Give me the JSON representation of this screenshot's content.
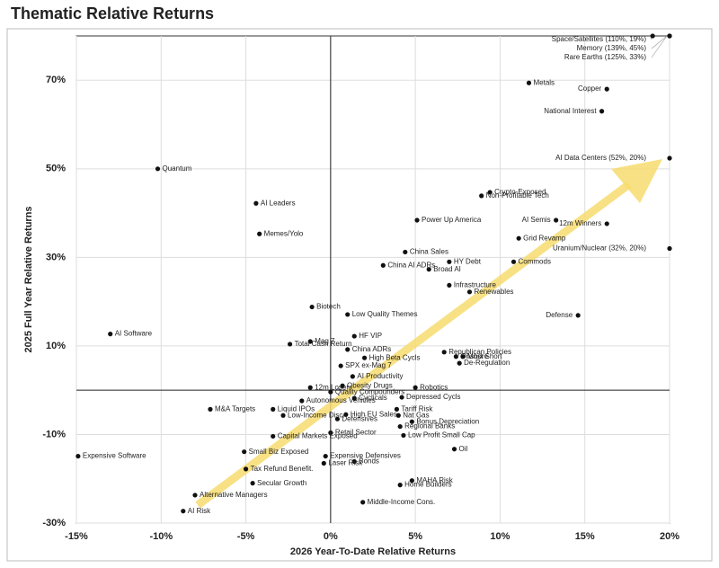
{
  "chart_data": {
    "type": "scatter",
    "title": "Thematic Relative Returns",
    "x_label": "2026 Year-To-Date Relative Returns",
    "y_label": "2025 Full Year Relative Returns",
    "xlim": [
      -15,
      20
    ],
    "ylim": [
      -30,
      80
    ],
    "xticks": [
      {
        "value": -15,
        "label": "-15%"
      },
      {
        "value": -10,
        "label": "-10%"
      },
      {
        "value": -5,
        "label": "-5%"
      },
      {
        "value": 0,
        "label": "0%"
      },
      {
        "value": 5,
        "label": "5%"
      },
      {
        "value": 10,
        "label": "10%"
      },
      {
        "value": 15,
        "label": "15%"
      },
      {
        "value": 20,
        "label": "20%"
      }
    ],
    "yticks": [
      {
        "value": -30,
        "label": "-30%"
      },
      {
        "value": -10,
        "label": "-10%"
      },
      {
        "value": 10,
        "label": "10%"
      },
      {
        "value": 30,
        "label": "30%"
      },
      {
        "value": 50,
        "label": "50%"
      },
      {
        "value": 70,
        "label": "70%"
      }
    ],
    "grid": true,
    "color": "#111111",
    "arrow_color": "#f7dc6f",
    "points": [
      {
        "label": "Space/Satellites (110%, 19%)",
        "x": 19,
        "y": 80
      },
      {
        "label": "Memory (139%, 45%)",
        "x": 20,
        "y": 80
      },
      {
        "label": "Rare Earths (125%, 33%)",
        "x": 20,
        "y": 80
      },
      {
        "label": "Metals",
        "x": 11.7,
        "y": 69.4
      },
      {
        "label": "Copper",
        "x": 16.3,
        "y": 68
      },
      {
        "label": "National Interest",
        "x": 16.0,
        "y": 63
      },
      {
        "label": "AI Data Centers (52%, 20%)",
        "x": 20,
        "y": 52.4
      },
      {
        "label": "Uranium/Nuclear (32%, 20%)",
        "x": 20,
        "y": 32
      },
      {
        "label": "Crypto-Exposed",
        "x": 9.4,
        "y": 44.7
      },
      {
        "label": "Non-Profitable Tech",
        "x": 8.9,
        "y": 43.9
      },
      {
        "label": "AI Semis",
        "x": 13.3,
        "y": 38.4
      },
      {
        "label": "12m Winners",
        "x": 16.3,
        "y": 37.6
      },
      {
        "label": "Power Up America",
        "x": 5.1,
        "y": 38.4
      },
      {
        "label": "Grid Revamp",
        "x": 11.1,
        "y": 34.3
      },
      {
        "label": "China Sales",
        "x": 4.4,
        "y": 31.2
      },
      {
        "label": "HY Debt",
        "x": 7.0,
        "y": 29
      },
      {
        "label": "Commods",
        "x": 10.8,
        "y": 29
      },
      {
        "label": "China AI ADRs",
        "x": 3.1,
        "y": 28.2
      },
      {
        "label": "Broad AI",
        "x": 5.8,
        "y": 27.3
      },
      {
        "label": "Infrastructure",
        "x": 7.0,
        "y": 23.7
      },
      {
        "label": "Renewables",
        "x": 8.2,
        "y": 22.2
      },
      {
        "label": "Defense",
        "x": 14.6,
        "y": 16.9
      },
      {
        "label": "Biotech",
        "x": -1.1,
        "y": 18.8
      },
      {
        "label": "Quantum",
        "x": -10.2,
        "y": 50
      },
      {
        "label": "AI Leaders",
        "x": -4.4,
        "y": 42.2
      },
      {
        "label": "Memes/Yolo",
        "x": -4.2,
        "y": 35.3
      },
      {
        "label": "AI Software",
        "x": -13.0,
        "y": 12.7
      },
      {
        "label": "Low Quality Themes",
        "x": 1.0,
        "y": 17.1
      },
      {
        "label": "HF VIP",
        "x": 1.4,
        "y": 12.2
      },
      {
        "label": "Mag 7",
        "x": -1.2,
        "y": 11
      },
      {
        "label": "Total Cash Return",
        "x": -2.4,
        "y": 10.4
      },
      {
        "label": "China ADRs",
        "x": 1.0,
        "y": 9.2
      },
      {
        "label": "High Beta Cycls",
        "x": 2.0,
        "y": 7.3
      },
      {
        "label": "SPX ex-Mag 7",
        "x": 0.6,
        "y": 5.5
      },
      {
        "label": "Republican Policies",
        "x": 6.7,
        "y": 8.6
      },
      {
        "label": "Onshore",
        "x": 7.4,
        "y": 7.6
      },
      {
        "label": "Most Short",
        "x": 7.8,
        "y": 7.6
      },
      {
        "label": "De-Regulation",
        "x": 7.6,
        "y": 6.1
      },
      {
        "label": "AI Productivity",
        "x": 1.3,
        "y": 3.1
      },
      {
        "label": "Obesity Drugs",
        "x": 0.7,
        "y": 1
      },
      {
        "label": "Robotics",
        "x": 5.0,
        "y": 0.6
      },
      {
        "label": "12m Losers",
        "x": -1.2,
        "y": 0.6
      },
      {
        "label": "Quality Compounders",
        "x": 0,
        "y": -0.4
      },
      {
        "label": "Autonomous Vehicles",
        "x": -1.7,
        "y": -2.4
      },
      {
        "label": "Liquid IPOs",
        "x": -3.4,
        "y": -4.3
      },
      {
        "label": "M&A Targets",
        "x": -7.1,
        "y": -4.3
      },
      {
        "label": "Low-Income Disc.",
        "x": -2.8,
        "y": -5.7
      },
      {
        "label": "Cyclicals",
        "x": 1.4,
        "y": -1.8
      },
      {
        "label": "High EU Sales",
        "x": 0.9,
        "y": -5.5
      },
      {
        "label": "Depressed Cycls",
        "x": 4.2,
        "y": -1.6
      },
      {
        "label": "Tariff Risk",
        "x": 3.9,
        "y": -4.3
      },
      {
        "label": "Nat Gas",
        "x": 4.0,
        "y": -5.7
      },
      {
        "label": "Bonus Depreciation",
        "x": 4.8,
        "y": -7.1
      },
      {
        "label": "Defensives",
        "x": 0.4,
        "y": -6.5
      },
      {
        "label": "Retail Sector",
        "x": 0,
        "y": -9.6
      },
      {
        "label": "Regional Banks",
        "x": 4.1,
        "y": -8.2
      },
      {
        "label": "Low Profit Small Cap",
        "x": 4.3,
        "y": -10.2
      },
      {
        "label": "Oil",
        "x": 7.3,
        "y": -13.3
      },
      {
        "label": "Capital Markets Exposed",
        "x": -3.4,
        "y": -10.4
      },
      {
        "label": "Small Biz Exposed",
        "x": -5.1,
        "y": -13.9
      },
      {
        "label": "Expensive Defensives",
        "x": -0.3,
        "y": -14.9
      },
      {
        "label": "Bonds",
        "x": 1.4,
        "y": -16.1
      },
      {
        "label": "Laser Risk",
        "x": -0.4,
        "y": -16.5
      },
      {
        "label": "Expensive Software",
        "x": -14.9,
        "y": -14.9
      },
      {
        "label": "Tax Refund Benefit.",
        "x": -5.0,
        "y": -17.8
      },
      {
        "label": "Secular Growth",
        "x": -4.6,
        "y": -21
      },
      {
        "label": "MAHA Risk",
        "x": 4.8,
        "y": -20.4
      },
      {
        "label": "Home Builders",
        "x": 4.1,
        "y": -21.4
      },
      {
        "label": "Alternative Managers",
        "x": -8.0,
        "y": -23.7
      },
      {
        "label": "Middle-Income Cons.",
        "x": 1.9,
        "y": -25.3
      },
      {
        "label": "AI Risk",
        "x": -8.7,
        "y": -27.3
      }
    ]
  }
}
